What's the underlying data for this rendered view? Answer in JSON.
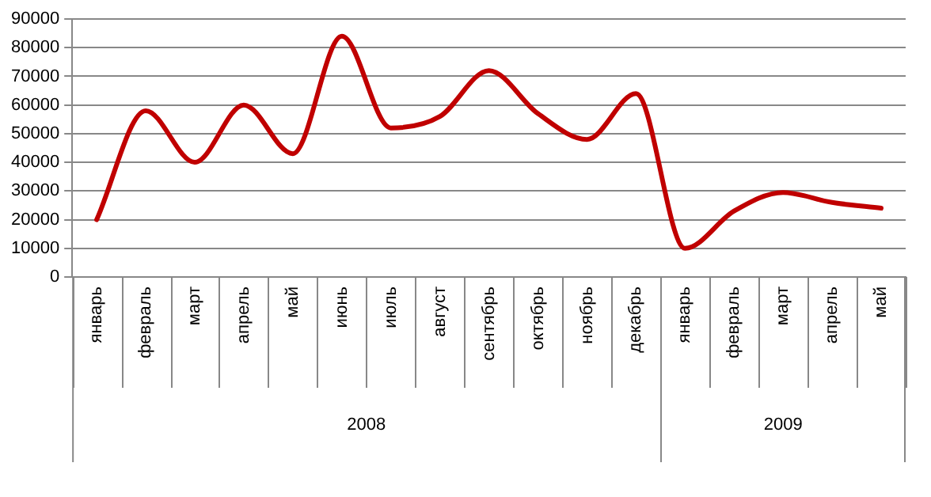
{
  "chart_data": {
    "type": "line",
    "categories": [
      "январь",
      "февраль",
      "март",
      "апрель",
      "май",
      "июнь",
      "июль",
      "август",
      "сентябрь",
      "октябрь",
      "ноябрь",
      "декабрь",
      "январь",
      "февраль",
      "март",
      "апрель",
      "май"
    ],
    "series": [
      {
        "color": "#c00000",
        "values": [
          20000,
          58000,
          40000,
          60000,
          43000,
          84000,
          52000,
          56000,
          72000,
          57000,
          48000,
          64000,
          10000,
          23000,
          29500,
          26000,
          24000
        ]
      }
    ],
    "ylim": [
      0,
      90000
    ],
    "yticks": [
      0,
      10000,
      20000,
      30000,
      40000,
      50000,
      60000,
      70000,
      80000,
      90000
    ],
    "grid": "y",
    "legend": false,
    "marker": "none",
    "line_style": "solid",
    "annotations": [
      "2008",
      "2009"
    ]
  }
}
